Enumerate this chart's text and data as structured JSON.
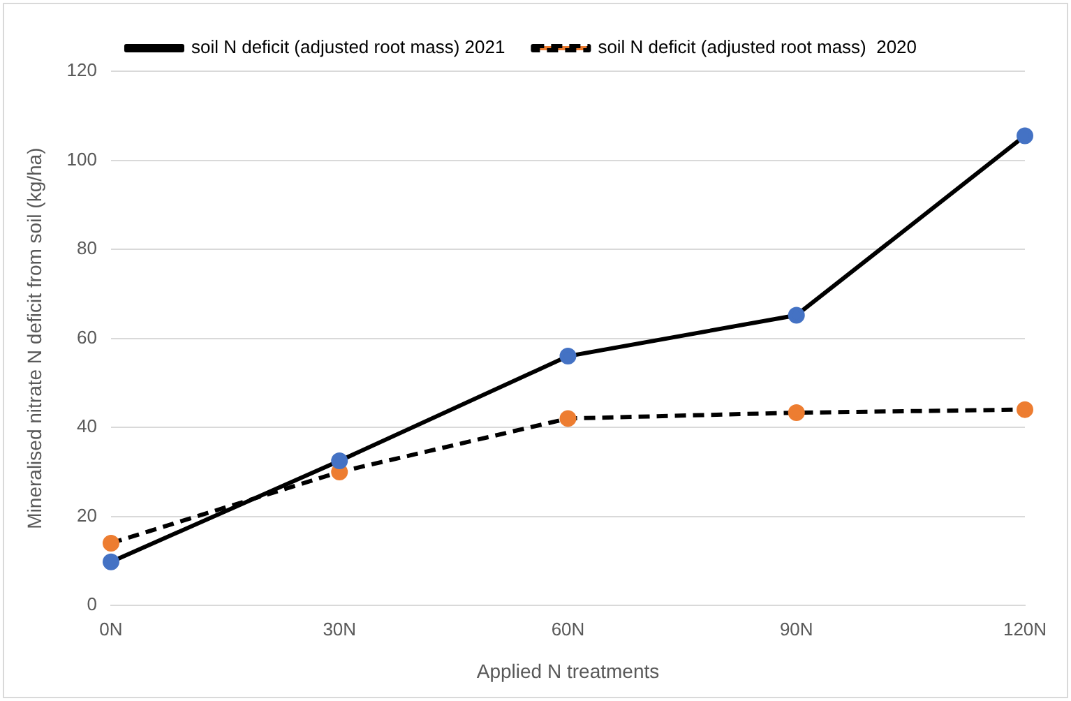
{
  "chart_data": {
    "type": "line",
    "xlabel": "Applied N treatments",
    "ylabel": "Mineralised nitrate N deficit from soil (kg/ha)",
    "categories": [
      "0N",
      "30N",
      "60N",
      "90N",
      "120N"
    ],
    "series": [
      {
        "name": "soil N deficit (adjusted root mass) 2021",
        "color": "#4472c4",
        "line_style": "solid",
        "values": [
          9.8,
          32.5,
          56,
          65.2,
          105.5
        ]
      },
      {
        "name": "soil N deficit (adjusted root mass)  2020",
        "color": "#ed7d31",
        "line_style": "dashed",
        "values": [
          14,
          30,
          42,
          43.3,
          44
        ]
      }
    ],
    "ylim": [
      0,
      120
    ],
    "yticks": [
      0,
      20,
      40,
      60,
      80,
      100,
      120
    ],
    "grid": "y",
    "legend": "top",
    "marker": "circle"
  }
}
